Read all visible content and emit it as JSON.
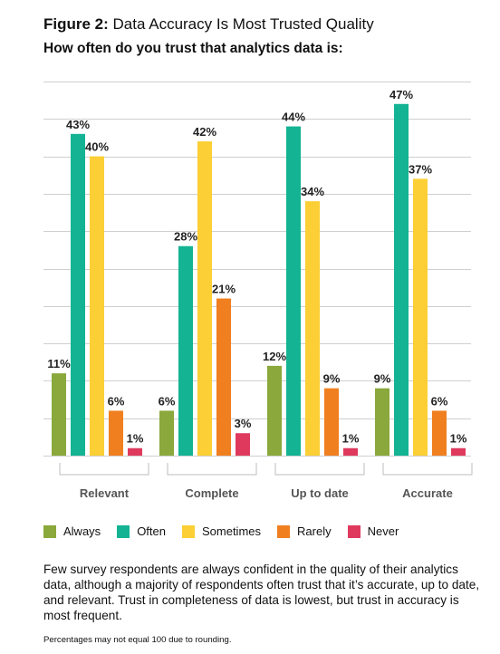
{
  "figure_label": "Figure 2:",
  "figure_title": "Data Accuracy Is Most Trusted Quality",
  "subtitle": "How often do you trust that analytics data is:",
  "chart_data": {
    "type": "bar",
    "categories": [
      "Relevant",
      "Complete",
      "Up to date",
      "Accurate"
    ],
    "series": [
      {
        "name": "Always",
        "color": "#8aa83b",
        "values": [
          11,
          6,
          12,
          9
        ]
      },
      {
        "name": "Often",
        "color": "#13b393",
        "values": [
          43,
          28,
          44,
          47
        ]
      },
      {
        "name": "Sometimes",
        "color": "#fbcf35",
        "values": [
          40,
          42,
          34,
          37
        ]
      },
      {
        "name": "Rarely",
        "color": "#f07f20",
        "values": [
          6,
          21,
          9,
          6
        ]
      },
      {
        "name": "Never",
        "color": "#df3a5e",
        "values": [
          1,
          3,
          1,
          1
        ]
      }
    ],
    "value_suffix": "%",
    "ylim": [
      0,
      50
    ],
    "grid": true,
    "legend_position": "bottom-left"
  },
  "body_text": "Few survey respondents are always confident in the quality of their analytics data, although a majority of respondents often trust that it’s accurate, up to date, and relevant. Trust in completeness of data is lowest, but trust in accuracy is most frequent.",
  "footnote": "Percentages may not equal 100 due to rounding."
}
